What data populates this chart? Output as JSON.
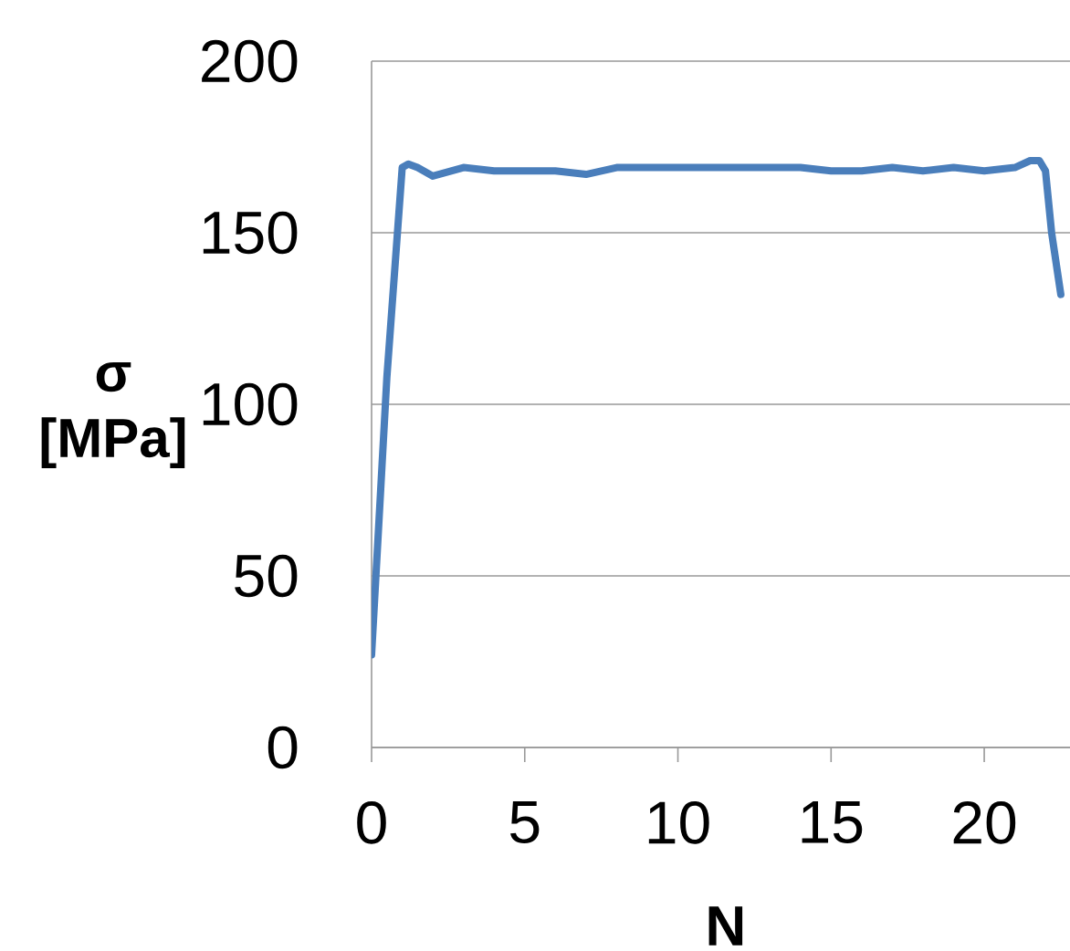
{
  "chart_data": {
    "type": "line",
    "xlabel": "N",
    "ylabel": "σ [MPa]",
    "xlim": [
      0,
      22.8
    ],
    "ylim": [
      0,
      200
    ],
    "xticks": [
      0,
      5,
      10,
      15,
      20
    ],
    "yticks": [
      0,
      50,
      100,
      150,
      200
    ],
    "grid": "y",
    "marker": "none",
    "line_style": "solid",
    "series": [
      {
        "color": "#4a7ebb",
        "x": [
          0,
          0.5,
          1,
          1.2,
          1.5,
          2,
          3,
          4,
          5,
          6,
          7,
          8,
          9,
          10,
          11,
          12,
          13,
          14,
          15,
          16,
          17,
          18,
          19,
          20,
          21,
          21.5,
          21.8,
          22,
          22.2,
          22.5
        ],
        "values": [
          27,
          108,
          169,
          170,
          169,
          166.5,
          169,
          168,
          168,
          168,
          167,
          169,
          169,
          169,
          169,
          169,
          169,
          169,
          168,
          168,
          169,
          168,
          169,
          168,
          169,
          171,
          171,
          168,
          150,
          132
        ]
      }
    ]
  }
}
